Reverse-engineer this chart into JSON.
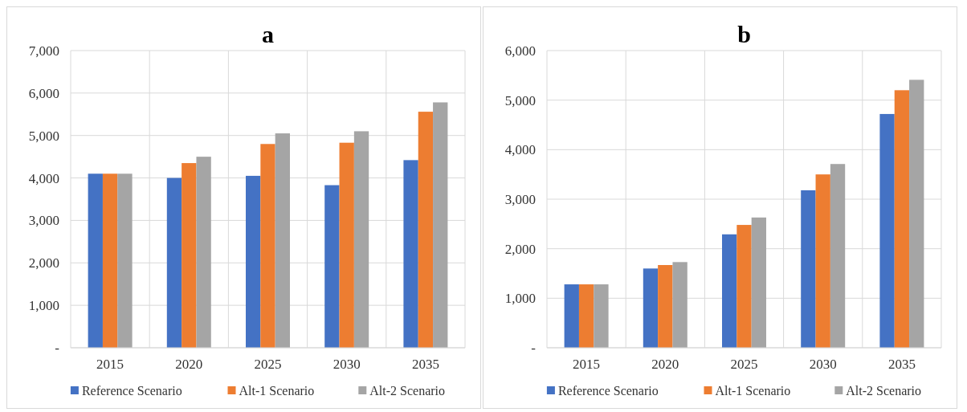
{
  "chart_data": [
    {
      "type": "bar",
      "title": "a",
      "categories": [
        "2015",
        "2020",
        "2025",
        "2030",
        "2035"
      ],
      "series": [
        {
          "name": "Reference Scenario",
          "color": "#4472c4",
          "values": [
            4100,
            4000,
            4050,
            3830,
            4420
          ]
        },
        {
          "name": "Alt-1 Scenario",
          "color": "#ed7d31",
          "values": [
            4100,
            4350,
            4800,
            4830,
            5560
          ]
        },
        {
          "name": "Alt-2 Scenario",
          "color": "#a5a5a5",
          "values": [
            4100,
            4500,
            5050,
            5100,
            5780
          ]
        }
      ],
      "ylim": [
        0,
        7000
      ],
      "yticks": [
        {
          "value": 0,
          "label": "-"
        },
        {
          "value": 1000,
          "label": "1,000"
        },
        {
          "value": 2000,
          "label": "2,000"
        },
        {
          "value": 3000,
          "label": "3,000"
        },
        {
          "value": 4000,
          "label": "4,000"
        },
        {
          "value": 5000,
          "label": "5,000"
        },
        {
          "value": 6000,
          "label": "6,000"
        },
        {
          "value": 7000,
          "label": "7,000"
        }
      ],
      "grid": true,
      "legend": "bottom"
    },
    {
      "type": "bar",
      "title": "b",
      "categories": [
        "2015",
        "2020",
        "2025",
        "2030",
        "2035"
      ],
      "series": [
        {
          "name": "Reference Scenario",
          "color": "#4472c4",
          "values": [
            1280,
            1600,
            2290,
            3180,
            4720
          ]
        },
        {
          "name": "Alt-1 Scenario",
          "color": "#ed7d31",
          "values": [
            1280,
            1670,
            2480,
            3500,
            5200
          ]
        },
        {
          "name": "Alt-2 Scenario",
          "color": "#a5a5a5",
          "values": [
            1280,
            1730,
            2630,
            3710,
            5410
          ]
        }
      ],
      "ylim": [
        0,
        6000
      ],
      "yticks": [
        {
          "value": 0,
          "label": "-"
        },
        {
          "value": 1000,
          "label": "1,000"
        },
        {
          "value": 2000,
          "label": "2,000"
        },
        {
          "value": 3000,
          "label": "3,000"
        },
        {
          "value": 4000,
          "label": "4,000"
        },
        {
          "value": 5000,
          "label": "5,000"
        },
        {
          "value": 6000,
          "label": "6,000"
        }
      ],
      "grid": true,
      "legend": "bottom"
    }
  ]
}
